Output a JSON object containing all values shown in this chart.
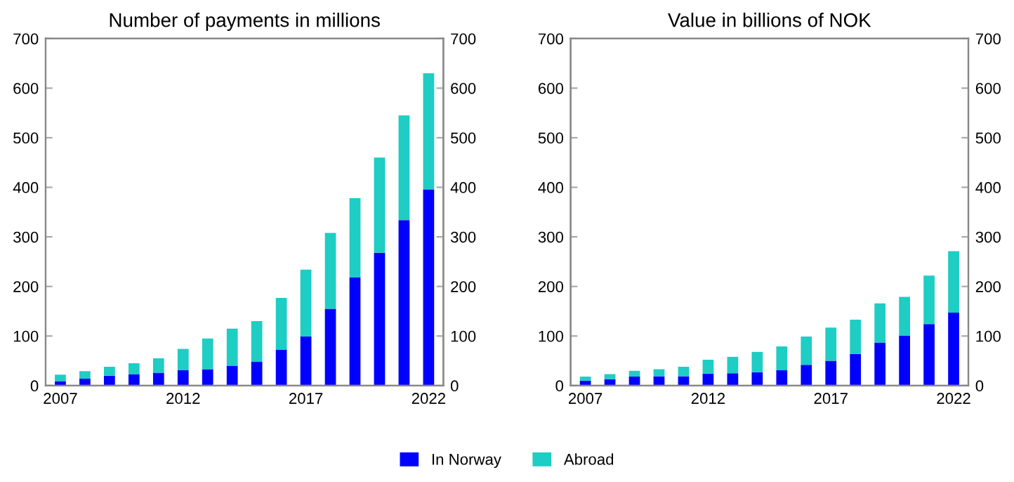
{
  "chart_data": [
    {
      "type": "bar",
      "title": "Number of payments in millions",
      "stacked": true,
      "legend": "bottom",
      "categories": [
        "2007",
        null,
        null,
        null,
        null,
        "2012",
        null,
        null,
        null,
        null,
        "2017",
        null,
        null,
        null,
        null,
        "2022"
      ],
      "series": [
        {
          "name": "In Norway",
          "color": "#0000ff",
          "values": [
            9,
            14,
            20,
            23,
            26,
            31,
            33,
            40,
            48,
            72,
            99,
            155,
            218,
            268,
            334,
            396
          ]
        },
        {
          "name": "Abroad",
          "color": "#1ecdc3",
          "values": [
            13,
            15,
            18,
            22,
            29,
            43,
            62,
            75,
            82,
            105,
            135,
            153,
            160,
            192,
            211,
            234
          ]
        }
      ],
      "ylim": [
        0,
        700
      ],
      "yticks": [
        0,
        100,
        200,
        300,
        400,
        500,
        600,
        700
      ],
      "y2lim": [
        0,
        700
      ],
      "y2ticks": [
        0,
        100,
        200,
        300,
        400,
        500,
        600,
        700
      ]
    },
    {
      "type": "bar",
      "title": "Value in billions of NOK",
      "stacked": true,
      "categories": [
        "2007",
        null,
        null,
        null,
        null,
        "2012",
        null,
        null,
        null,
        null,
        "2017",
        null,
        null,
        null,
        null,
        "2022"
      ],
      "series": [
        {
          "color": "#0000ff",
          "values": [
            10,
            13,
            18,
            19,
            19,
            24,
            25,
            27,
            31,
            42,
            50,
            64,
            87,
            101,
            124,
            147
          ]
        },
        {
          "color": "#1ecdc3",
          "values": [
            8,
            10,
            12,
            14,
            19,
            28,
            33,
            41,
            48,
            57,
            67,
            69,
            79,
            78,
            98,
            124
          ]
        }
      ],
      "ylim": [
        0,
        700
      ],
      "yticks": [
        0,
        100,
        200,
        300,
        400,
        500,
        600,
        700
      ],
      "y2lim": [
        0,
        700
      ],
      "y2ticks": [
        0,
        100,
        200,
        300,
        400,
        500,
        600,
        700
      ]
    }
  ]
}
